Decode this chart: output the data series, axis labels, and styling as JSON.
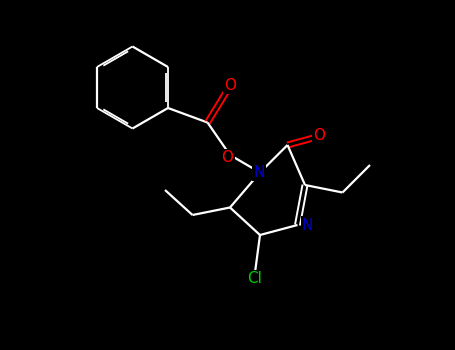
{
  "background_color": "#000000",
  "bond_color": "#ffffff",
  "atom_colors": {
    "O": "#ff0000",
    "N": "#0000cd",
    "Cl": "#00cc00",
    "C": "#ffffff"
  },
  "figsize": [
    4.55,
    3.5
  ],
  "dpi": 100,
  "xlim": [
    0,
    9.1
  ],
  "ylim": [
    0,
    7.0
  ]
}
